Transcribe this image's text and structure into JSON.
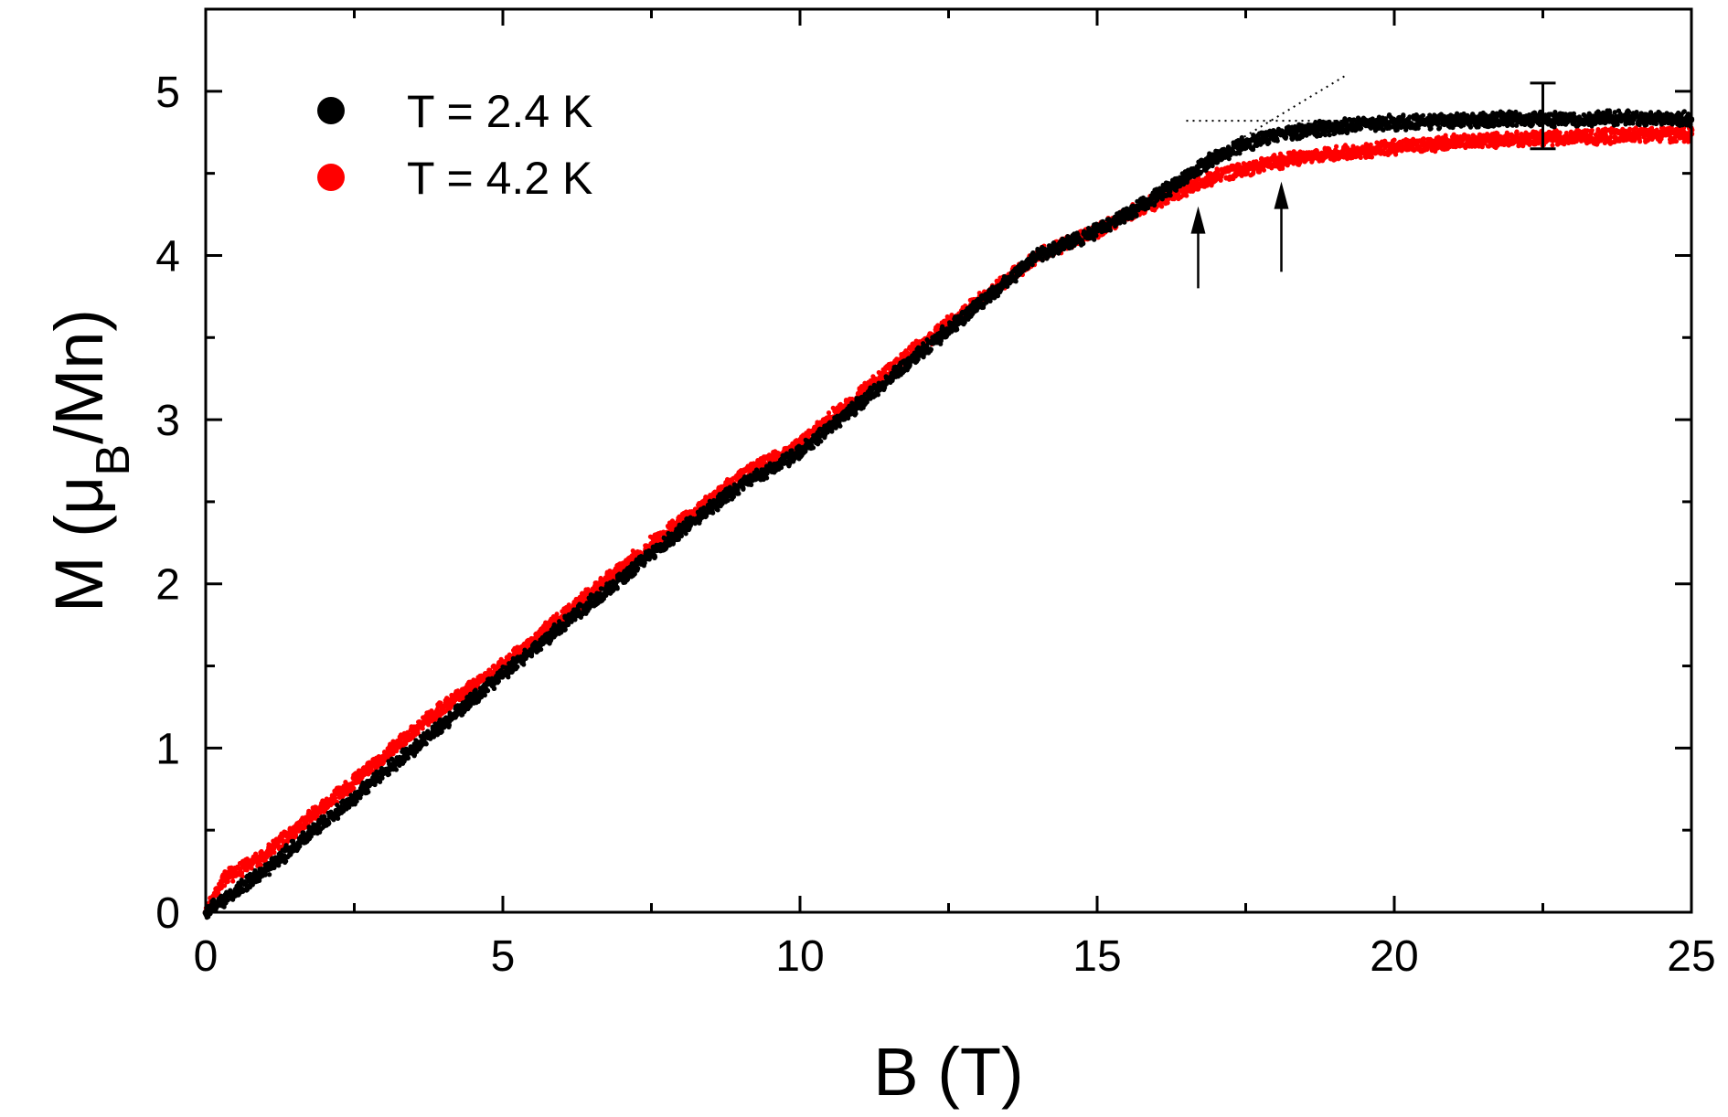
{
  "chart_data": {
    "type": "scatter",
    "xlabel": "B (T)",
    "ylabel": {
      "main": "M (μ",
      "sub": "B",
      "tail": "/Mn)"
    },
    "xlim": [
      0,
      25
    ],
    "ylim": [
      0,
      5.5
    ],
    "xticks": [
      0,
      5,
      10,
      15,
      20,
      25
    ],
    "xtick_labels": [
      "0",
      "5",
      "10",
      "15",
      "20",
      "25"
    ],
    "yticks": [
      0,
      1,
      2,
      3,
      4,
      5
    ],
    "ytick_labels": [
      "0",
      "1",
      "2",
      "3",
      "4",
      "5"
    ],
    "x_minor_step": 2.5,
    "y_minor_step": 0.5,
    "legend_position": "top-left",
    "series": [
      {
        "name": "T = 2.4 K",
        "color": "#000000",
        "x": [
          0,
          0.3,
          1,
          2,
          3,
          4,
          5,
          6,
          7,
          8,
          9,
          10,
          11,
          12,
          13,
          14,
          15,
          15.5,
          16,
          16.5,
          17,
          17.5,
          18,
          18.5,
          19,
          19.5,
          20,
          21,
          22,
          23,
          24,
          25
        ],
        "y": [
          0.0,
          0.08,
          0.25,
          0.55,
          0.85,
          1.15,
          1.45,
          1.75,
          2.03,
          2.33,
          2.6,
          2.8,
          3.1,
          3.4,
          3.7,
          4.0,
          4.15,
          4.25,
          4.36,
          4.48,
          4.6,
          4.68,
          4.73,
          4.76,
          4.78,
          4.8,
          4.81,
          4.82,
          4.83,
          4.83,
          4.84,
          4.83
        ]
      },
      {
        "name": "T = 4.2 K",
        "color": "#ff0000",
        "x": [
          0,
          0.3,
          1,
          2,
          3,
          4,
          5,
          6,
          7,
          8,
          9,
          10,
          11,
          12,
          13,
          14,
          15,
          15.5,
          16,
          16.5,
          17,
          17.5,
          18,
          18.5,
          19,
          19.5,
          20,
          21,
          22,
          23,
          24,
          25
        ],
        "y": [
          0.0,
          0.2,
          0.35,
          0.65,
          0.95,
          1.25,
          1.5,
          1.8,
          2.1,
          2.38,
          2.65,
          2.85,
          3.15,
          3.45,
          3.72,
          4.0,
          4.15,
          4.25,
          4.33,
          4.41,
          4.48,
          4.53,
          4.57,
          4.6,
          4.62,
          4.64,
          4.66,
          4.69,
          4.71,
          4.72,
          4.73,
          4.74
        ]
      }
    ],
    "error_bar": {
      "x": 22.5,
      "y": 4.85,
      "low": 4.65,
      "high": 5.05
    },
    "arrows": [
      {
        "x": 16.7,
        "y_tail": 3.8,
        "y_head": 4.3
      },
      {
        "x": 18.1,
        "y_tail": 3.9,
        "y_head": 4.45
      }
    ],
    "guide_lines": [
      {
        "x": [
          16.5,
          19.2
        ],
        "y": [
          4.82,
          4.82
        ]
      },
      {
        "x": [
          16.0,
          19.2
        ],
        "y": [
          4.4,
          5.1
        ]
      }
    ]
  }
}
